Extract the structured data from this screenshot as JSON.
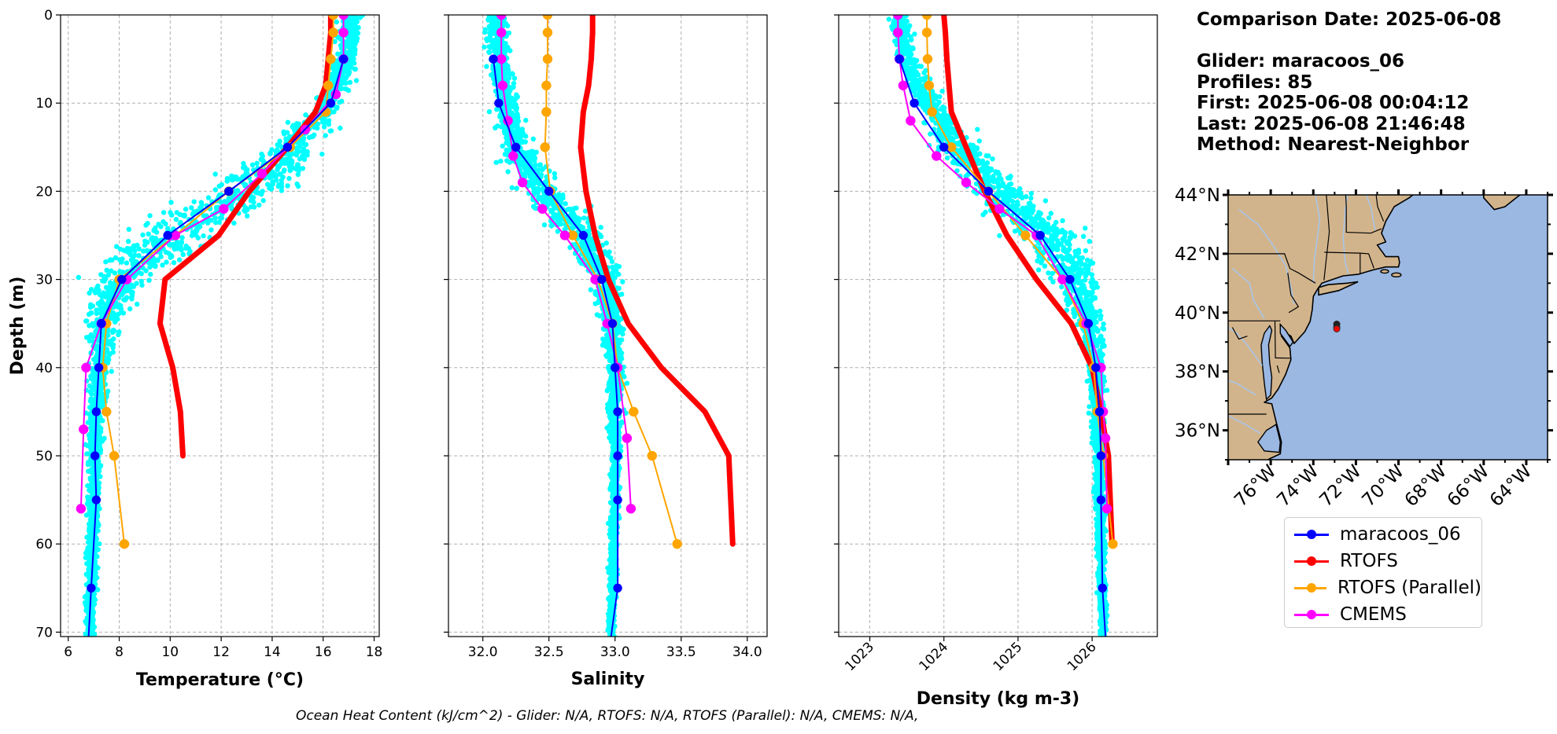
{
  "info": {
    "lines": [
      "Comparison Date: 2025-06-08",
      "",
      "Glider: maracoos_06",
      "Profiles: 85",
      "First: 2025-06-08 00:04:12",
      "Last: 2025-06-08 21:46:48",
      "Method: Nearest-Neighbor"
    ]
  },
  "footer": "Ocean Heat Content (kJ/cm^2) - Glider: N/A,  RTOFS: N/A,  RTOFS (Parallel): N/A,  CMEMS: N/A,",
  "colors": {
    "glider": "#0000ff",
    "rtofs": "#ff0000",
    "parallel": "#ffa500",
    "cmems": "#ff00ff",
    "scatter": "#00ffff",
    "ocean": "#9ab8e2",
    "land": "#d2b48c",
    "river": "#a9c5e8",
    "grid": "#b0b0b0"
  },
  "legend": [
    {
      "label": "maracoos_06",
      "color": "#0000ff"
    },
    {
      "label": "RTOFS",
      "color": "#ff0000"
    },
    {
      "label": "RTOFS (Parallel)",
      "color": "#ffa500"
    },
    {
      "label": "CMEMS",
      "color": "#ff00ff"
    }
  ],
  "chart_data": [
    {
      "type": "line",
      "title": "",
      "xlabel": "Temperature (°C)",
      "ylabel": "Depth (m)",
      "xlim": [
        5.7,
        18.2
      ],
      "ylim": [
        70.5,
        0
      ],
      "xticks": [
        6,
        8,
        10,
        12,
        14,
        16,
        18
      ],
      "yticks": [
        0,
        10,
        20,
        30,
        40,
        50,
        60,
        70
      ],
      "grid": true,
      "scatter_cloud": {
        "name": "glider profiles",
        "profile": [
          [
            1,
            17.1
          ],
          [
            5,
            16.9
          ],
          [
            10,
            16.2
          ],
          [
            15,
            14.8
          ],
          [
            20,
            12.8
          ],
          [
            25,
            10.0
          ],
          [
            30,
            8.0
          ],
          [
            35,
            7.4
          ],
          [
            40,
            7.2
          ],
          [
            45,
            7.1
          ],
          [
            50,
            7.05
          ],
          [
            55,
            7.0
          ],
          [
            60,
            6.95
          ],
          [
            65,
            6.9
          ],
          [
            70.5,
            6.85
          ]
        ],
        "spread": [
          [
            1,
            0.3
          ],
          [
            10,
            0.5
          ],
          [
            15,
            0.9
          ],
          [
            20,
            1.6
          ],
          [
            25,
            1.5
          ],
          [
            30,
            1.0
          ],
          [
            35,
            0.5
          ],
          [
            40,
            0.3
          ],
          [
            50,
            0.2
          ],
          [
            70.5,
            0.15
          ]
        ]
      },
      "series": [
        {
          "name": "maracoos_06",
          "x": [
            16.8,
            16.3,
            14.6,
            12.3,
            9.9,
            8.1,
            7.3,
            7.2,
            7.1,
            7.05,
            7.1,
            6.9
          ],
          "y": [
            5,
            10,
            15,
            20,
            25,
            30,
            35,
            40,
            45,
            50,
            55,
            65
          ],
          "extend_to": [
            [
              70.5,
              6.8
            ]
          ]
        },
        {
          "name": "RTOFS",
          "x": [
            16.3,
            16.3,
            16.2,
            16.1,
            15.7,
            14.6,
            13.1,
            11.9,
            9.8,
            9.6,
            10.1,
            10.4,
            10.5
          ],
          "y": [
            0,
            2,
            5,
            8,
            11,
            15,
            20,
            25,
            30,
            35,
            40,
            45,
            50
          ]
        },
        {
          "name": "RTOFS (Parallel)",
          "x": [
            16.4,
            16.4,
            16.3,
            16.2,
            16.1,
            14.7,
            12.3,
            10.2,
            8.0,
            7.5,
            7.35,
            7.5,
            7.8,
            8.2
          ],
          "y": [
            0,
            2,
            5,
            8,
            11,
            15,
            20,
            25,
            30,
            35,
            40,
            45,
            50,
            60
          ]
        },
        {
          "name": "CMEMS",
          "x": [
            16.8,
            16.8,
            16.8,
            16.5,
            15.3,
            13.6,
            12.1,
            10.2,
            8.3,
            7.3,
            6.7,
            6.6,
            6.5
          ],
          "y": [
            0,
            2,
            5,
            9,
            13,
            18,
            22,
            25,
            30,
            35,
            40,
            47,
            56
          ]
        }
      ]
    },
    {
      "type": "line",
      "title": "",
      "xlabel": "Salinity",
      "ylabel": "",
      "xlim": [
        31.74,
        34.15
      ],
      "ylim": [
        70.5,
        0
      ],
      "xticks": [
        32.0,
        32.5,
        33.0,
        33.5,
        34.0
      ],
      "yticks": [
        0,
        10,
        20,
        30,
        40,
        50,
        60,
        70
      ],
      "grid": true,
      "scatter_cloud": {
        "name": "glider profiles",
        "profile": [
          [
            1,
            32.1
          ],
          [
            5,
            32.12
          ],
          [
            10,
            32.18
          ],
          [
            15,
            32.25
          ],
          [
            20,
            32.45
          ],
          [
            25,
            32.75
          ],
          [
            30,
            32.92
          ],
          [
            35,
            32.98
          ],
          [
            40,
            33.0
          ],
          [
            50,
            33.0
          ],
          [
            60,
            32.99
          ],
          [
            70.5,
            32.97
          ]
        ],
        "spread": [
          [
            1,
            0.07
          ],
          [
            10,
            0.08
          ],
          [
            15,
            0.1
          ],
          [
            20,
            0.15
          ],
          [
            25,
            0.14
          ],
          [
            30,
            0.1
          ],
          [
            35,
            0.06
          ],
          [
            40,
            0.05
          ],
          [
            50,
            0.03
          ],
          [
            70.5,
            0.02
          ]
        ]
      },
      "series": [
        {
          "name": "maracoos_06",
          "x": [
            32.08,
            32.12,
            32.25,
            32.5,
            32.76,
            32.9,
            32.98,
            33.0,
            33.02,
            33.02,
            33.02,
            33.02
          ],
          "y": [
            5,
            10,
            15,
            20,
            25,
            30,
            35,
            40,
            45,
            50,
            55,
            65
          ],
          "extend_to": [
            [
              70.5,
              32.97
            ]
          ]
        },
        {
          "name": "RTOFS",
          "x": [
            32.83,
            32.83,
            32.82,
            32.8,
            32.76,
            32.74,
            32.78,
            32.85,
            32.95,
            33.1,
            33.35,
            33.68,
            33.86,
            33.89
          ],
          "y": [
            0,
            2,
            5,
            8,
            11,
            15,
            20,
            25,
            30,
            35,
            40,
            45,
            50,
            60
          ]
        },
        {
          "name": "RTOFS (Parallel)",
          "x": [
            32.49,
            32.49,
            32.49,
            32.48,
            32.48,
            32.47,
            32.51,
            32.68,
            32.87,
            32.98,
            33.02,
            33.14,
            33.28,
            33.47
          ],
          "y": [
            0,
            2,
            5,
            8,
            11,
            15,
            20,
            25,
            30,
            35,
            40,
            45,
            50,
            60
          ]
        },
        {
          "name": "CMEMS",
          "x": [
            32.14,
            32.14,
            32.14,
            32.15,
            32.19,
            32.23,
            32.3,
            32.45,
            32.62,
            32.85,
            32.94,
            33.02,
            33.09,
            33.12
          ],
          "y": [
            0,
            2,
            5,
            8,
            12,
            16,
            19,
            22,
            25,
            30,
            35,
            40,
            48,
            56
          ]
        }
      ]
    },
    {
      "type": "line",
      "title": "",
      "xlabel": "Density (kg m-3)",
      "ylabel": "",
      "xlim": [
        1022.58,
        1026.88
      ],
      "ylim": [
        70.5,
        0
      ],
      "xticks": [
        1023,
        1024,
        1025,
        1026
      ],
      "yticks": [
        0,
        10,
        20,
        30,
        40,
        50,
        60,
        70
      ],
      "grid": true,
      "scatter_cloud": {
        "name": "glider profiles",
        "profile": [
          [
            1,
            1023.4
          ],
          [
            5,
            1023.5
          ],
          [
            10,
            1023.8
          ],
          [
            15,
            1024.2
          ],
          [
            20,
            1024.75
          ],
          [
            25,
            1025.4
          ],
          [
            30,
            1025.75
          ],
          [
            35,
            1025.95
          ],
          [
            40,
            1026.05
          ],
          [
            50,
            1026.1
          ],
          [
            60,
            1026.12
          ],
          [
            70.5,
            1026.15
          ]
        ],
        "spread": [
          [
            1,
            0.1
          ],
          [
            10,
            0.15
          ],
          [
            15,
            0.25
          ],
          [
            20,
            0.35
          ],
          [
            25,
            0.35
          ],
          [
            30,
            0.25
          ],
          [
            35,
            0.15
          ],
          [
            40,
            0.1
          ],
          [
            50,
            0.06
          ],
          [
            70.5,
            0.04
          ]
        ]
      },
      "series": [
        {
          "name": "maracoos_06",
          "x": [
            1023.4,
            1023.6,
            1024.0,
            1024.6,
            1025.3,
            1025.7,
            1025.95,
            1026.05,
            1026.1,
            1026.12,
            1026.12,
            1026.14
          ],
          "y": [
            5,
            10,
            15,
            20,
            25,
            30,
            35,
            40,
            45,
            50,
            55,
            65
          ],
          "extend_to": [
            [
              70.5,
              1026.18
            ]
          ]
        },
        {
          "name": "RTOFS",
          "x": [
            1024.0,
            1024.02,
            1024.04,
            1024.07,
            1024.1,
            1024.3,
            1024.55,
            1024.85,
            1025.25,
            1025.72,
            1026.0,
            1026.12,
            1026.22,
            1026.27
          ],
          "y": [
            0,
            2,
            5,
            8,
            11,
            15,
            20,
            25,
            30,
            35,
            40,
            45,
            50,
            60
          ]
        },
        {
          "name": "RTOFS (Parallel)",
          "x": [
            1023.77,
            1023.77,
            1023.78,
            1023.8,
            1023.84,
            1024.1,
            1024.6,
            1025.1,
            1025.6,
            1025.88,
            1026.02,
            1026.07,
            1026.15,
            1026.28
          ],
          "y": [
            0,
            2,
            5,
            8,
            11,
            15,
            20,
            25,
            30,
            35,
            40,
            45,
            50,
            60
          ]
        },
        {
          "name": "CMEMS",
          "x": [
            1023.38,
            1023.38,
            1023.4,
            1023.45,
            1023.55,
            1023.9,
            1024.3,
            1024.75,
            1025.25,
            1025.6,
            1025.92,
            1026.12,
            1026.15,
            1026.18,
            1026.2
          ],
          "y": [
            0,
            2,
            5,
            8,
            12,
            16,
            19,
            22,
            25,
            30,
            35,
            40,
            45,
            48,
            56
          ]
        }
      ]
    },
    {
      "type": "map",
      "title": "",
      "lon_range": [
        -78,
        -63
      ],
      "lat_range": [
        35,
        44
      ],
      "lat_ticks": [
        "44°N",
        "42°N",
        "40°N",
        "38°N",
        "36°N"
      ],
      "lat_tick_values": [
        44,
        42,
        40,
        38,
        36
      ],
      "lon_ticks": [
        "76°W",
        "74°W",
        "72°W",
        "70°W",
        "68°W",
        "66°W",
        "64°W"
      ],
      "lon_tick_values": [
        -76,
        -74,
        -72,
        -70,
        -68,
        -66,
        -64
      ],
      "glider_position": {
        "lon": -72.9,
        "lat": 39.5
      }
    }
  ]
}
